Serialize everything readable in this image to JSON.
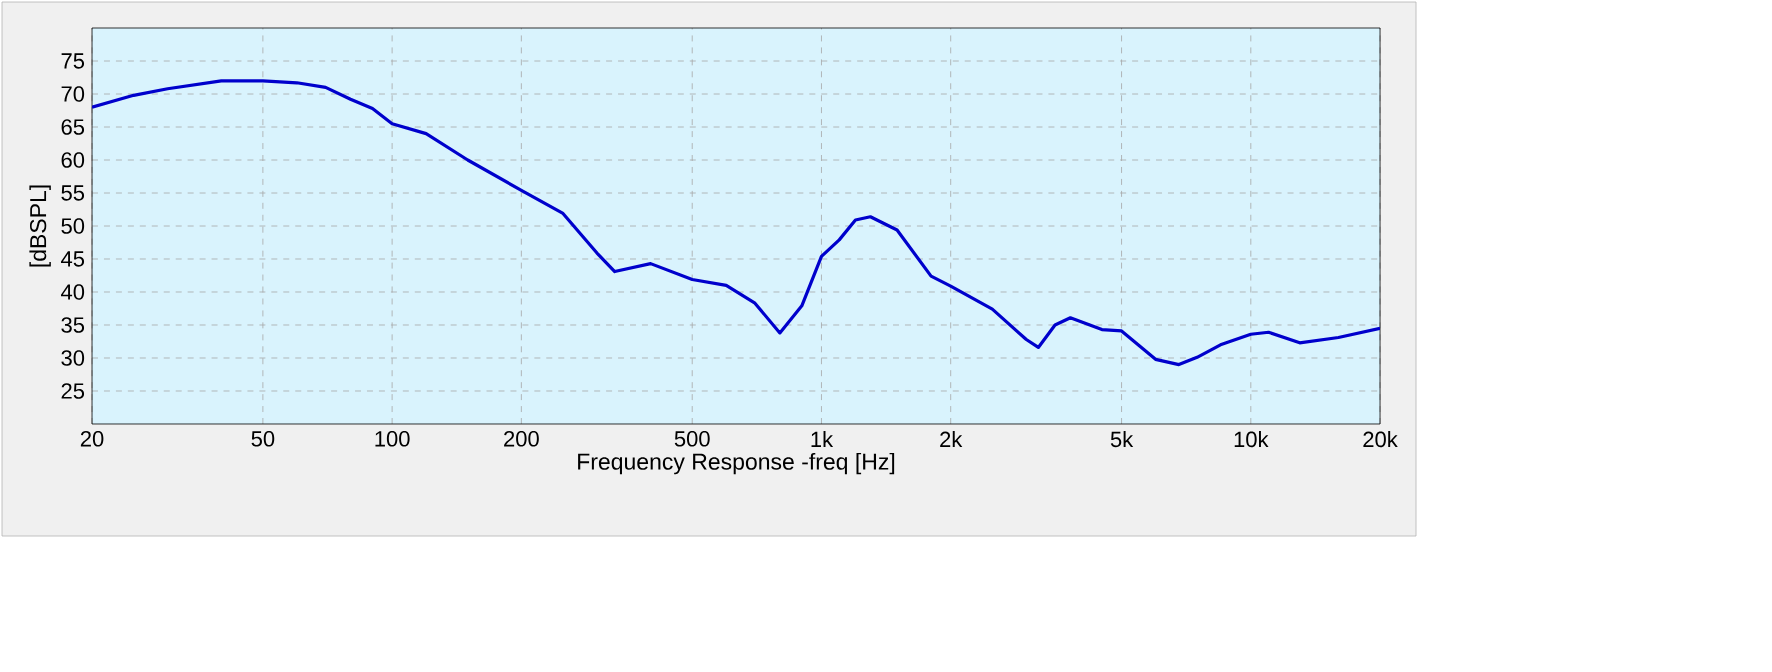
{
  "chart_data": {
    "type": "line",
    "xlabel": "Frequency Response -freq [Hz]",
    "ylabel": "[dBSPL]",
    "log": "x",
    "grid": true,
    "marker": "none",
    "line_style": "solid",
    "xlim": [
      20,
      20000
    ],
    "ylim": [
      20,
      80
    ],
    "xticks": [
      20,
      50,
      100,
      200,
      500,
      {
        "value": 1000,
        "label": "1k"
      },
      {
        "value": 2000,
        "label": "2k"
      },
      {
        "value": 5000,
        "label": "5k"
      },
      {
        "value": 10000,
        "label": "10k"
      },
      {
        "value": 20000,
        "label": "20k"
      }
    ],
    "yticks": [
      25,
      30,
      35,
      40,
      45,
      50,
      55,
      60,
      65,
      70,
      75
    ],
    "series": [
      {
        "color": "#0000cc",
        "x": [
          20,
          25,
          30,
          40,
          50,
          60,
          70,
          80,
          90,
          100,
          120,
          150,
          200,
          250,
          300,
          330,
          400,
          500,
          600,
          700,
          800,
          900,
          1000,
          1100,
          1200,
          1300,
          1500,
          1800,
          2000,
          2500,
          3000,
          3200,
          3500,
          3800,
          4500,
          5000,
          6000,
          6800,
          7500,
          8500,
          10000,
          11000,
          13000,
          16000,
          20000
        ],
        "values": [
          68,
          69.8,
          70.8,
          72,
          72,
          71.7,
          71,
          69.2,
          67.8,
          65.5,
          64,
          60,
          55.4,
          51.9,
          45.9,
          43.1,
          44.3,
          41.9,
          41,
          38.3,
          33.8,
          37.9,
          45.4,
          47.9,
          50.9,
          51.4,
          49.4,
          42.4,
          40.9,
          37.4,
          32.8,
          31.6,
          35,
          36.1,
          34.3,
          34.1,
          29.8,
          29,
          30.1,
          32,
          33.6,
          33.9,
          32.3,
          33.1,
          34.5
        ]
      }
    ]
  }
}
